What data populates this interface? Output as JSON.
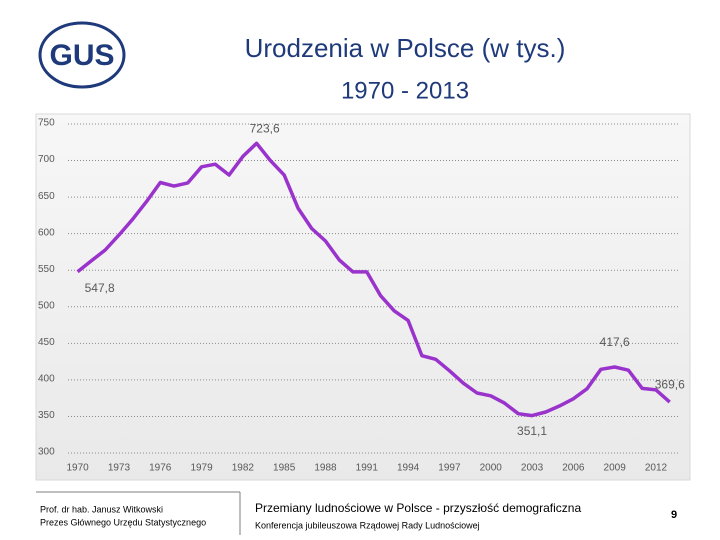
{
  "logo": "GUS",
  "chart_data": {
    "type": "line",
    "title": "Urodzenia w Polsce (w tys.)",
    "subtitle": "1970 - 2013",
    "x": [
      1970,
      1971,
      1972,
      1973,
      1974,
      1975,
      1976,
      1977,
      1978,
      1979,
      1980,
      1981,
      1982,
      1983,
      1984,
      1985,
      1986,
      1987,
      1988,
      1989,
      1990,
      1991,
      1992,
      1993,
      1994,
      1995,
      1996,
      1997,
      1998,
      1999,
      2000,
      2001,
      2002,
      2003,
      2004,
      2005,
      2006,
      2007,
      2008,
      2009,
      2010,
      2011,
      2012,
      2013
    ],
    "values": [
      547.8,
      562.9,
      577.7,
      598.0,
      619.8,
      643.8,
      670.0,
      665.0,
      669.5,
      691.4,
      695.0,
      680.2,
      705.7,
      723.6,
      700.0,
      680.1,
      635.0,
      607.0,
      590.0,
      564.0,
      547.7,
      547.7,
      515.2,
      494.3,
      481.3,
      433.1,
      428.2,
      412.6,
      395.6,
      382.0,
      378.3,
      368.2,
      353.8,
      351.1,
      356.1,
      364.4,
      374.2,
      387.9,
      414.5,
      417.6,
      413.3,
      388.4,
      386.3,
      369.6
    ],
    "value_labels": [
      "547,8",
      null,
      null,
      null,
      null,
      null,
      null,
      null,
      null,
      null,
      null,
      null,
      null,
      "723,6",
      null,
      null,
      null,
      null,
      null,
      null,
      null,
      null,
      null,
      null,
      null,
      null,
      null,
      null,
      null,
      null,
      null,
      null,
      null,
      "351,1",
      null,
      null,
      null,
      null,
      null,
      "417,6",
      null,
      null,
      null,
      "369,6"
    ],
    "color": "#9933cc",
    "xlim": [
      1969.3,
      2013.6
    ],
    "xticks": [
      1970,
      1973,
      1976,
      1979,
      1982,
      1985,
      1988,
      1991,
      1994,
      1997,
      2000,
      2003,
      2006,
      2009,
      2012
    ],
    "ylim": [
      300,
      750
    ],
    "yticks": [
      300,
      350,
      400,
      450,
      500,
      550,
      600,
      650,
      700,
      750
    ],
    "grid": true
  },
  "footer": {
    "author": "Prof. dr hab. Janusz Witkowski",
    "position": "Prezes Głównego Urzędu Statystycznego",
    "talk": "Przemiany ludnościowe w Polsce -  przyszłość demograficzna",
    "event": "Konferencja jubileuszowa Rządowej Rady Ludnościowej",
    "page": "9"
  }
}
